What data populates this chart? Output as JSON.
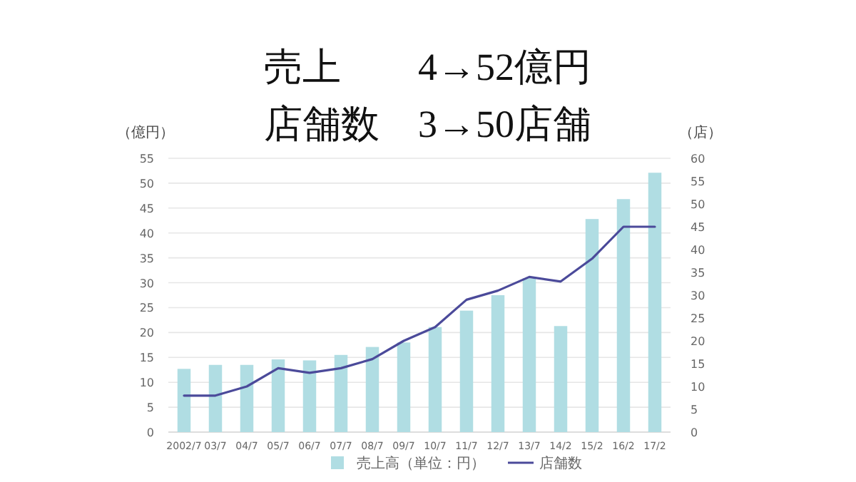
{
  "chart_data": {
    "type": "bar",
    "title": "売上　　4→52億円",
    "subtitle": "店舗数　3→50店舗",
    "ylabel": "（億円）",
    "y2label": "（店）",
    "categories": [
      "2002/7",
      "03/7",
      "04/7",
      "05/7",
      "06/7",
      "07/7",
      "08/7",
      "09/7",
      "10/7",
      "11/7",
      "12/7",
      "13/7",
      "14/2",
      "15/2",
      "16/2",
      "17/2"
    ],
    "series": [
      {
        "name": "売上高（単位：円）",
        "color": "#b0dde3",
        "values": [
          12.7,
          13.5,
          13.5,
          14.6,
          14.4,
          15.5,
          17.1,
          18.0,
          21.1,
          24.4,
          27.5,
          30.9,
          21.3,
          42.8,
          46.8,
          52.1
        ]
      },
      {
        "name": "店舗数",
        "type": "line",
        "axis": "y2",
        "color": "#4b4a9a",
        "values": [
          8,
          8,
          10,
          14,
          13,
          14,
          16,
          20,
          23,
          29,
          31,
          34,
          33,
          38,
          45,
          45
        ]
      }
    ],
    "ylim": [
      0,
      55
    ],
    "yticks": [
      0,
      5,
      10,
      15,
      20,
      25,
      30,
      35,
      40,
      45,
      50,
      55
    ],
    "y2lim": [
      0,
      60
    ],
    "y2ticks": [
      0,
      5,
      10,
      15,
      20,
      25,
      30,
      35,
      40,
      45,
      50,
      55,
      60
    ],
    "grid": "y",
    "legend": "bottom",
    "marker": "none",
    "line_style": "solid"
  }
}
